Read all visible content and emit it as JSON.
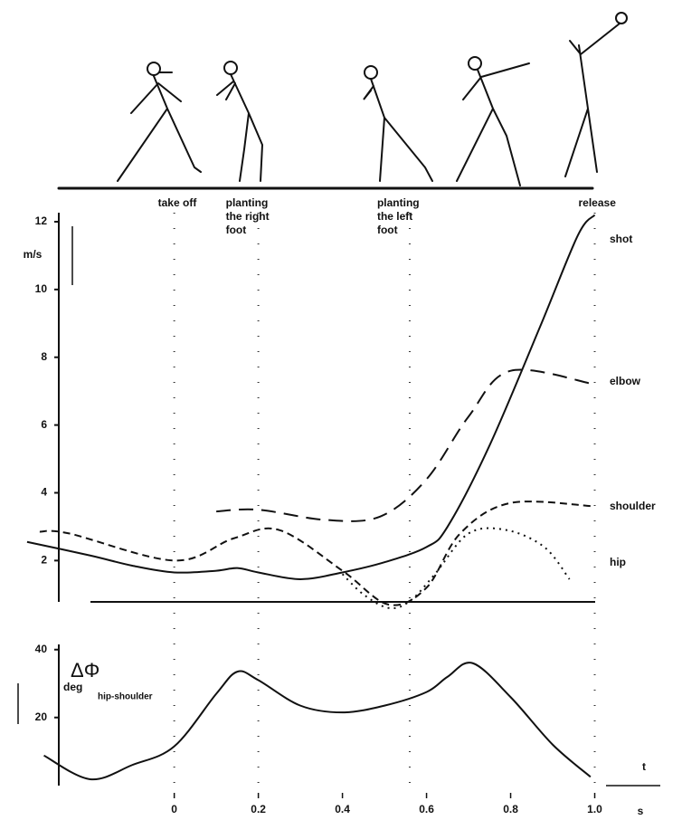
{
  "chart_data": [
    {
      "type": "line",
      "ylabel": "m/s",
      "xlim": [
        -0.38,
        1.1
      ],
      "ylim": [
        0.3,
        12.4
      ],
      "yticks": [
        2,
        4,
        6,
        8,
        10,
        12
      ],
      "events": [
        {
          "label": [
            "take off"
          ],
          "x": 0
        },
        {
          "label": [
            "planting",
            "the right",
            "foot"
          ],
          "x": 0.2
        },
        {
          "label": [
            "planting",
            "the left",
            "foot"
          ],
          "x": 0.56
        },
        {
          "label": [
            "release"
          ],
          "x": 1.0
        }
      ],
      "series": [
        {
          "name": "shot",
          "color": "#111111",
          "dash": "none",
          "x": [
            -0.35,
            -0.2,
            -0.1,
            0,
            0.1,
            0.15,
            0.2,
            0.3,
            0.4,
            0.5,
            0.6,
            0.65,
            0.75,
            0.87,
            0.96,
            1.0
          ],
          "values": [
            2.55,
            2.15,
            1.85,
            1.65,
            1.7,
            1.78,
            1.65,
            1.45,
            1.65,
            1.95,
            2.4,
            3.0,
            5.4,
            8.9,
            11.6,
            12.2
          ]
        },
        {
          "name": "elbow",
          "color": "#111111",
          "dash": "16,9",
          "x": [
            0.1,
            0.2,
            0.36,
            0.49,
            0.6,
            0.7,
            0.8,
            1.0
          ],
          "values": [
            3.45,
            3.5,
            3.2,
            3.3,
            4.4,
            6.25,
            7.6,
            7.2
          ]
        },
        {
          "name": "shoulder",
          "color": "#111111",
          "dash": "8,5",
          "x": [
            -0.32,
            -0.25,
            0,
            0.14,
            0.25,
            0.4,
            0.51,
            0.6,
            0.68,
            0.8,
            1.0
          ],
          "values": [
            2.85,
            2.8,
            2.0,
            2.65,
            2.9,
            1.7,
            0.7,
            1.2,
            2.8,
            3.7,
            3.6
          ]
        },
        {
          "name": "hip",
          "color": "#111111",
          "dash": "2,5",
          "x": [
            0.4,
            0.45,
            0.51,
            0.56,
            0.62,
            0.7,
            0.79,
            0.88,
            0.94
          ],
          "values": [
            1.6,
            1.0,
            0.6,
            0.8,
            1.6,
            2.8,
            2.9,
            2.4,
            1.45
          ]
        }
      ]
    },
    {
      "type": "line",
      "ylabel": "deg",
      "symbol": "ΔΦ",
      "subtitle": "hip-shoulder",
      "xlabel": "t",
      "xunit": "s",
      "xlim": [
        -0.38,
        1.1
      ],
      "ylim": [
        1,
        41
      ],
      "yticks": [
        20,
        40
      ],
      "xticks": [
        0,
        0.2,
        0.4,
        0.6,
        0.8,
        {
          "value": 1,
          "label": "1.0"
        }
      ],
      "series": [
        {
          "name": null,
          "color": "#111111",
          "dash": "none",
          "x": [
            -0.31,
            -0.2,
            -0.1,
            0,
            0.1,
            0.15,
            0.2,
            0.3,
            0.4,
            0.5,
            0.6,
            0.65,
            0.71,
            0.8,
            0.9,
            0.99
          ],
          "values": [
            8.8,
            1.8,
            6,
            11.5,
            27,
            33.5,
            31,
            23.5,
            21.5,
            23.5,
            27.5,
            32,
            36,
            26,
            12,
            2.5
          ]
        }
      ]
    }
  ]
}
